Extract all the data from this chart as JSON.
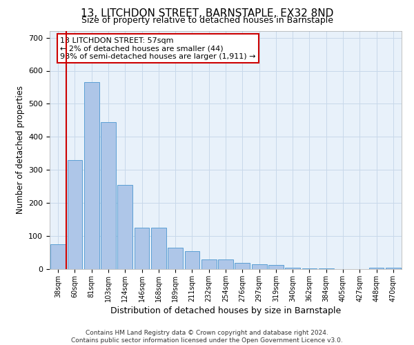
{
  "title": "13, LITCHDON STREET, BARNSTAPLE, EX32 8ND",
  "subtitle": "Size of property relative to detached houses in Barnstaple",
  "xlabel": "Distribution of detached houses by size in Barnstaple",
  "ylabel": "Number of detached properties",
  "categories": [
    "38sqm",
    "60sqm",
    "81sqm",
    "103sqm",
    "124sqm",
    "146sqm",
    "168sqm",
    "189sqm",
    "211sqm",
    "232sqm",
    "254sqm",
    "276sqm",
    "297sqm",
    "319sqm",
    "340sqm",
    "362sqm",
    "384sqm",
    "405sqm",
    "427sqm",
    "448sqm",
    "470sqm"
  ],
  "values": [
    75,
    330,
    565,
    445,
    255,
    125,
    125,
    65,
    55,
    30,
    30,
    18,
    15,
    12,
    5,
    3,
    3,
    0,
    0,
    5,
    5
  ],
  "bar_color": "#aec6e8",
  "bar_edge_color": "#5a9fd4",
  "vline_color": "#cc0000",
  "vline_x": 0.5,
  "annotation_text": "13 LITCHDON STREET: 57sqm\n← 2% of detached houses are smaller (44)\n98% of semi-detached houses are larger (1,911) →",
  "annotation_box_color": "#ffffff",
  "annotation_box_edge": "#cc0000",
  "ylim": [
    0,
    720
  ],
  "yticks": [
    0,
    100,
    200,
    300,
    400,
    500,
    600,
    700
  ],
  "grid_color": "#c8d8ea",
  "background_color": "#e8f1fa",
  "footer": "Contains HM Land Registry data © Crown copyright and database right 2024.\nContains public sector information licensed under the Open Government Licence v3.0.",
  "fig_width": 6.0,
  "fig_height": 5.0,
  "dpi": 100
}
